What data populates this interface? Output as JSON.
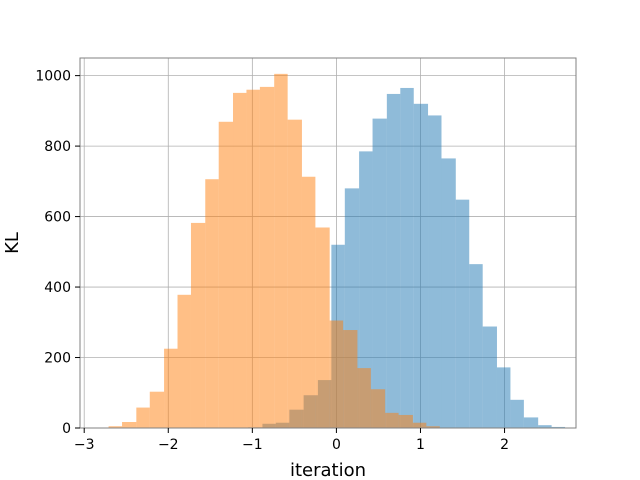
{
  "chart_data": {
    "type": "histogram",
    "xlabel": "iteration",
    "ylabel": "KL",
    "xlim": [
      -3.05,
      2.85
    ],
    "ylim": [
      0,
      1050
    ],
    "grid": true,
    "x_ticks": [
      -3,
      -2,
      -1,
      0,
      1,
      2
    ],
    "x_tick_labels": [
      "−3",
      "−2",
      "−1",
      "0",
      "1",
      "2"
    ],
    "y_ticks": [
      0,
      200,
      400,
      600,
      800,
      1000
    ],
    "y_tick_labels": [
      "0",
      "200",
      "400",
      "600",
      "800",
      "1000"
    ],
    "series": [
      {
        "color": "#1f77b4",
        "alpha": 0.5,
        "bins": [
          {
            "x0": -1.05,
            "x1": -0.88,
            "count": 2
          },
          {
            "x0": -0.88,
            "x1": -0.72,
            "count": 12
          },
          {
            "x0": -0.72,
            "x1": -0.56,
            "count": 15
          },
          {
            "x0": -0.56,
            "x1": -0.39,
            "count": 52
          },
          {
            "x0": -0.39,
            "x1": -0.22,
            "count": 93
          },
          {
            "x0": -0.22,
            "x1": -0.06,
            "count": 136
          },
          {
            "x0": -0.06,
            "x1": 0.1,
            "count": 520
          },
          {
            "x0": 0.1,
            "x1": 0.27,
            "count": 680
          },
          {
            "x0": 0.27,
            "x1": 0.43,
            "count": 785
          },
          {
            "x0": 0.43,
            "x1": 0.6,
            "count": 878
          },
          {
            "x0": 0.6,
            "x1": 0.76,
            "count": 948
          },
          {
            "x0": 0.76,
            "x1": 0.92,
            "count": 965
          },
          {
            "x0": 0.92,
            "x1": 1.09,
            "count": 920
          },
          {
            "x0": 1.09,
            "x1": 1.25,
            "count": 887
          },
          {
            "x0": 1.25,
            "x1": 1.42,
            "count": 765
          },
          {
            "x0": 1.42,
            "x1": 1.58,
            "count": 648
          },
          {
            "x0": 1.58,
            "x1": 1.74,
            "count": 465
          },
          {
            "x0": 1.74,
            "x1": 1.91,
            "count": 288
          },
          {
            "x0": 1.91,
            "x1": 2.07,
            "count": 172
          },
          {
            "x0": 2.07,
            "x1": 2.23,
            "count": 80
          },
          {
            "x0": 2.23,
            "x1": 2.4,
            "count": 30
          },
          {
            "x0": 2.4,
            "x1": 2.56,
            "count": 8
          },
          {
            "x0": 2.56,
            "x1": 2.72,
            "count": 3
          }
        ]
      },
      {
        "color": "#ff7f0e",
        "alpha": 0.5,
        "bins": [
          {
            "x0": -2.71,
            "x1": -2.55,
            "count": 5
          },
          {
            "x0": -2.55,
            "x1": -2.38,
            "count": 17
          },
          {
            "x0": -2.38,
            "x1": -2.22,
            "count": 58
          },
          {
            "x0": -2.22,
            "x1": -2.05,
            "count": 103
          },
          {
            "x0": -2.05,
            "x1": -1.89,
            "count": 225
          },
          {
            "x0": -1.89,
            "x1": -1.73,
            "count": 378
          },
          {
            "x0": -1.73,
            "x1": -1.56,
            "count": 582
          },
          {
            "x0": -1.56,
            "x1": -1.4,
            "count": 706
          },
          {
            "x0": -1.4,
            "x1": -1.23,
            "count": 869
          },
          {
            "x0": -1.23,
            "x1": -1.07,
            "count": 951
          },
          {
            "x0": -1.07,
            "x1": -0.91,
            "count": 960
          },
          {
            "x0": -0.91,
            "x1": -0.74,
            "count": 968
          },
          {
            "x0": -0.74,
            "x1": -0.58,
            "count": 1005
          },
          {
            "x0": -0.58,
            "x1": -0.41,
            "count": 875
          },
          {
            "x0": -0.41,
            "x1": -0.25,
            "count": 713
          },
          {
            "x0": -0.25,
            "x1": -0.08,
            "count": 569
          },
          {
            "x0": -0.08,
            "x1": 0.08,
            "count": 305
          },
          {
            "x0": 0.08,
            "x1": 0.25,
            "count": 278
          },
          {
            "x0": 0.25,
            "x1": 0.41,
            "count": 170
          },
          {
            "x0": 0.41,
            "x1": 0.58,
            "count": 110
          },
          {
            "x0": 0.58,
            "x1": 0.74,
            "count": 43
          },
          {
            "x0": 0.74,
            "x1": 0.91,
            "count": 37
          },
          {
            "x0": 0.91,
            "x1": 1.07,
            "count": 15
          },
          {
            "x0": 1.07,
            "x1": 1.23,
            "count": 5
          }
        ]
      }
    ]
  }
}
